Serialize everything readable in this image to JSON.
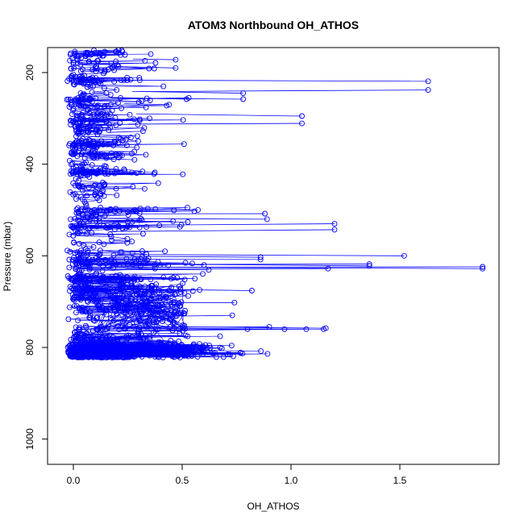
{
  "chart_data": {
    "type": "scatter",
    "title": "ATOM3 Northbound OH_ATHOS",
    "xlabel": "OH_ATHOS",
    "ylabel": "Pressure (mbar)",
    "xlim": [
      -0.05,
      1.9
    ],
    "ylim_reversed": [
      1050,
      150
    ],
    "x_ticks": [
      0.0,
      0.5,
      1.0,
      1.5
    ],
    "x_tick_labels": [
      "0.0",
      "0.5",
      "1.0",
      "1.5"
    ],
    "y_ticks": [
      200,
      400,
      600,
      800,
      1000
    ],
    "y_tick_labels": [
      "200",
      "400",
      "600",
      "800",
      "1000"
    ],
    "grid": false,
    "legend": "none",
    "series_color": "#0000FF",
    "marker": "open circle",
    "connected_by_lines": true,
    "outlier_points": [
      {
        "x": 1.63,
        "y": 219
      },
      {
        "x": 1.63,
        "y": 238
      },
      {
        "x": 0.78,
        "y": 245
      },
      {
        "x": 0.78,
        "y": 258
      },
      {
        "x": 1.05,
        "y": 295
      },
      {
        "x": 1.05,
        "y": 311
      },
      {
        "x": 0.44,
        "y": 270
      },
      {
        "x": 0.47,
        "y": 172
      },
      {
        "x": 0.47,
        "y": 190
      },
      {
        "x": 0.35,
        "y": 300
      },
      {
        "x": 0.32,
        "y": 328
      },
      {
        "x": 0.88,
        "y": 508
      },
      {
        "x": 0.89,
        "y": 520
      },
      {
        "x": 1.2,
        "y": 530
      },
      {
        "x": 1.2,
        "y": 543
      },
      {
        "x": 1.52,
        "y": 600
      },
      {
        "x": 0.86,
        "y": 603
      },
      {
        "x": 0.86,
        "y": 608
      },
      {
        "x": 1.36,
        "y": 618
      },
      {
        "x": 1.36,
        "y": 622
      },
      {
        "x": 1.88,
        "y": 624
      },
      {
        "x": 1.88,
        "y": 628
      },
      {
        "x": 1.17,
        "y": 628
      },
      {
        "x": 0.6,
        "y": 620
      },
      {
        "x": 0.82,
        "y": 676
      },
      {
        "x": 0.74,
        "y": 702
      },
      {
        "x": 0.73,
        "y": 730
      },
      {
        "x": 0.8,
        "y": 760
      },
      {
        "x": 0.9,
        "y": 755
      },
      {
        "x": 0.97,
        "y": 760
      },
      {
        "x": 1.07,
        "y": 760
      },
      {
        "x": 1.15,
        "y": 760
      },
      {
        "x": 1.16,
        "y": 758
      },
      {
        "x": 0.6,
        "y": 800
      },
      {
        "x": 0.53,
        "y": 255
      },
      {
        "x": 0.52,
        "y": 258
      }
    ],
    "core_cloud_description_ranges": {
      "x_range": [
        -0.04,
        0.6
      ],
      "y_range": [
        150,
        822
      ]
    }
  }
}
